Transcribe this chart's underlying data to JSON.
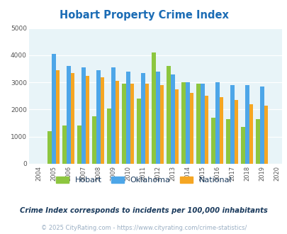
{
  "title": "Hobart Property Crime Index",
  "years": [
    2004,
    2005,
    2006,
    2007,
    2008,
    2009,
    2010,
    2011,
    2012,
    2013,
    2014,
    2015,
    2016,
    2017,
    2018,
    2019,
    2020
  ],
  "hobart": [
    0,
    1200,
    1400,
    1400,
    1750,
    2050,
    2950,
    2400,
    4100,
    3600,
    3000,
    2950,
    1700,
    1650,
    1350,
    1650,
    0
  ],
  "oklahoma": [
    0,
    4050,
    3600,
    3550,
    3450,
    3550,
    3400,
    3350,
    3400,
    3300,
    3000,
    2950,
    3000,
    2900,
    2900,
    2850,
    0
  ],
  "national": [
    0,
    3450,
    3350,
    3250,
    3200,
    3050,
    2950,
    2950,
    2900,
    2750,
    2600,
    2500,
    2450,
    2350,
    2200,
    2150,
    0
  ],
  "hobart_color": "#8dc63f",
  "oklahoma_color": "#4da6e8",
  "national_color": "#f5a623",
  "bg_color": "#e8f4f8",
  "ylim": [
    0,
    5000
  ],
  "yticks": [
    0,
    1000,
    2000,
    3000,
    4000,
    5000
  ],
  "subtitle": "Crime Index corresponds to incidents per 100,000 inhabitants",
  "footer": "© 2025 CityRating.com - https://www.cityrating.com/crime-statistics/",
  "title_color": "#1b6cb5",
  "subtitle_color": "#1a3a5c",
  "footer_color": "#9bafc4",
  "legend_labels": [
    "Hobart",
    "Oklahoma",
    "National"
  ],
  "legend_text_color": "#1a3a5c"
}
